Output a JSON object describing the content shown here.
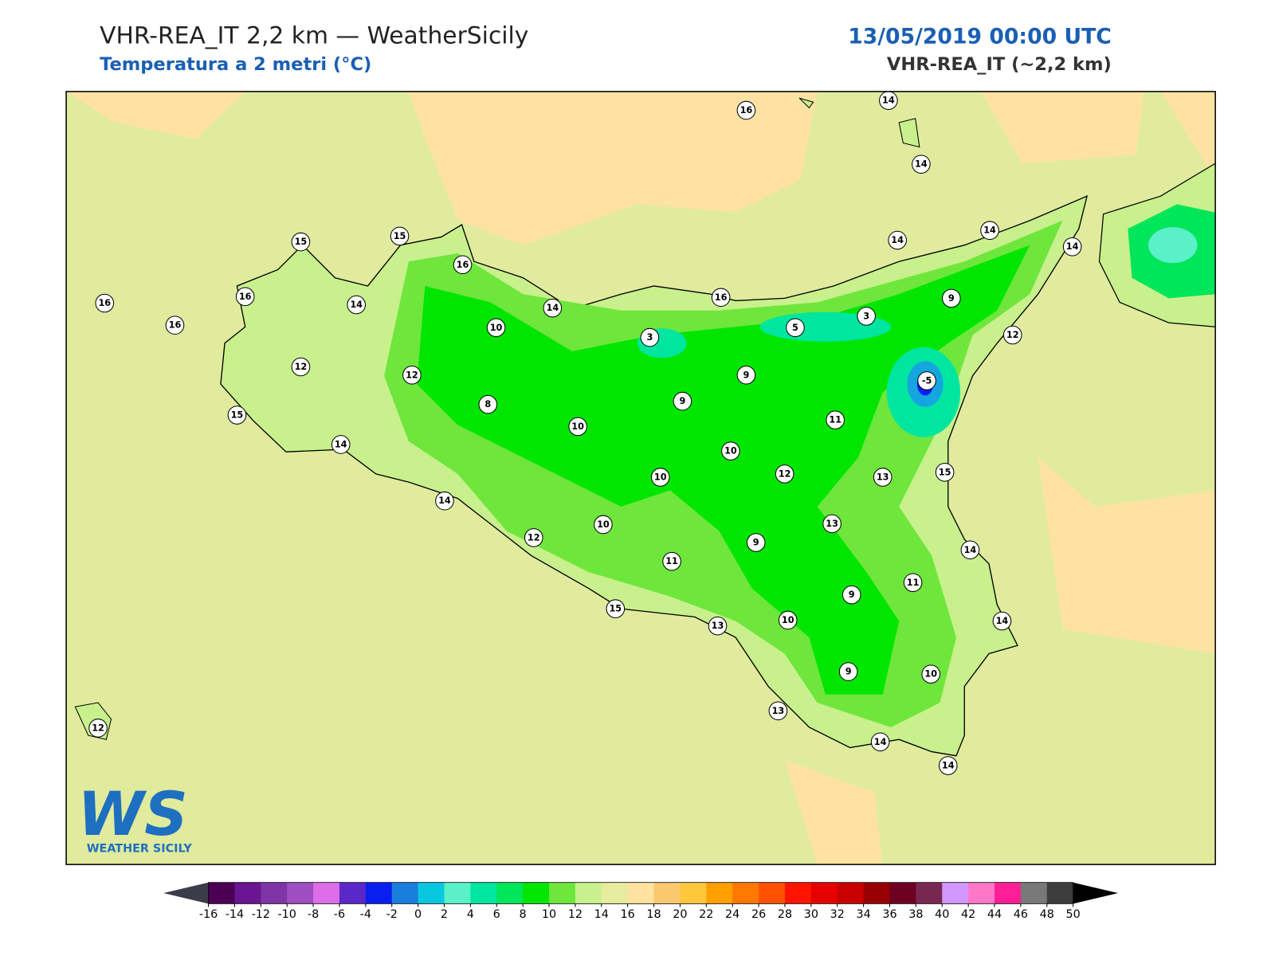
{
  "header": {
    "title": "VHR-REA_IT 2,2 km — WeatherSicily",
    "subtitle": "Temperatura a 2 metri (°C)",
    "valid_time": "13/05/2019 00:00 UTC",
    "model": "VHR-REA_IT (~2,2 km)"
  },
  "map": {
    "stations": [
      16,
      14,
      14,
      15,
      15,
      16,
      16,
      16,
      16,
      14,
      14,
      16,
      14,
      14,
      14,
      10,
      3,
      5,
      3,
      9,
      12,
      12,
      12,
      9,
      -5,
      8,
      9,
      15,
      14,
      10,
      11,
      10,
      12,
      13,
      15,
      10,
      14,
      13,
      10,
      12,
      9,
      14,
      11,
      9,
      11,
      15,
      13,
      10,
      14,
      9,
      10,
      13,
      14,
      14,
      12
    ]
  },
  "colorbar": {
    "ticks": [
      -16,
      -14,
      -12,
      -10,
      -8,
      -6,
      -4,
      -2,
      0,
      2,
      4,
      6,
      8,
      10,
      12,
      14,
      16,
      18,
      20,
      22,
      24,
      26,
      28,
      30,
      32,
      34,
      36,
      38,
      40,
      42,
      44,
      46,
      48,
      50
    ],
    "colors": [
      "#4b0055",
      "#6a1591",
      "#7e35a5",
      "#9e4ec0",
      "#dd6ee8",
      "#5a28c8",
      "#0a1ef0",
      "#1a7fdc",
      "#08c8e0",
      "#5af0c8",
      "#00e6a0",
      "#00e65a",
      "#00e600",
      "#6ee63c",
      "#c8f08c",
      "#e6eb9e",
      "#ffe1a0",
      "#fac86e",
      "#ffc83c",
      "#ffa000",
      "#ff7800",
      "#ff5000",
      "#ff1400",
      "#e60000",
      "#c80000",
      "#960000",
      "#6e0023",
      "#782850",
      "#d296ff",
      "#ff78c8",
      "#ff1e96",
      "#787878",
      "#3c3c3c"
    ],
    "under": "#3c3c48",
    "over": "#000000"
  },
  "logo": {
    "mark": "WS",
    "name": "WEATHER SICILY"
  }
}
